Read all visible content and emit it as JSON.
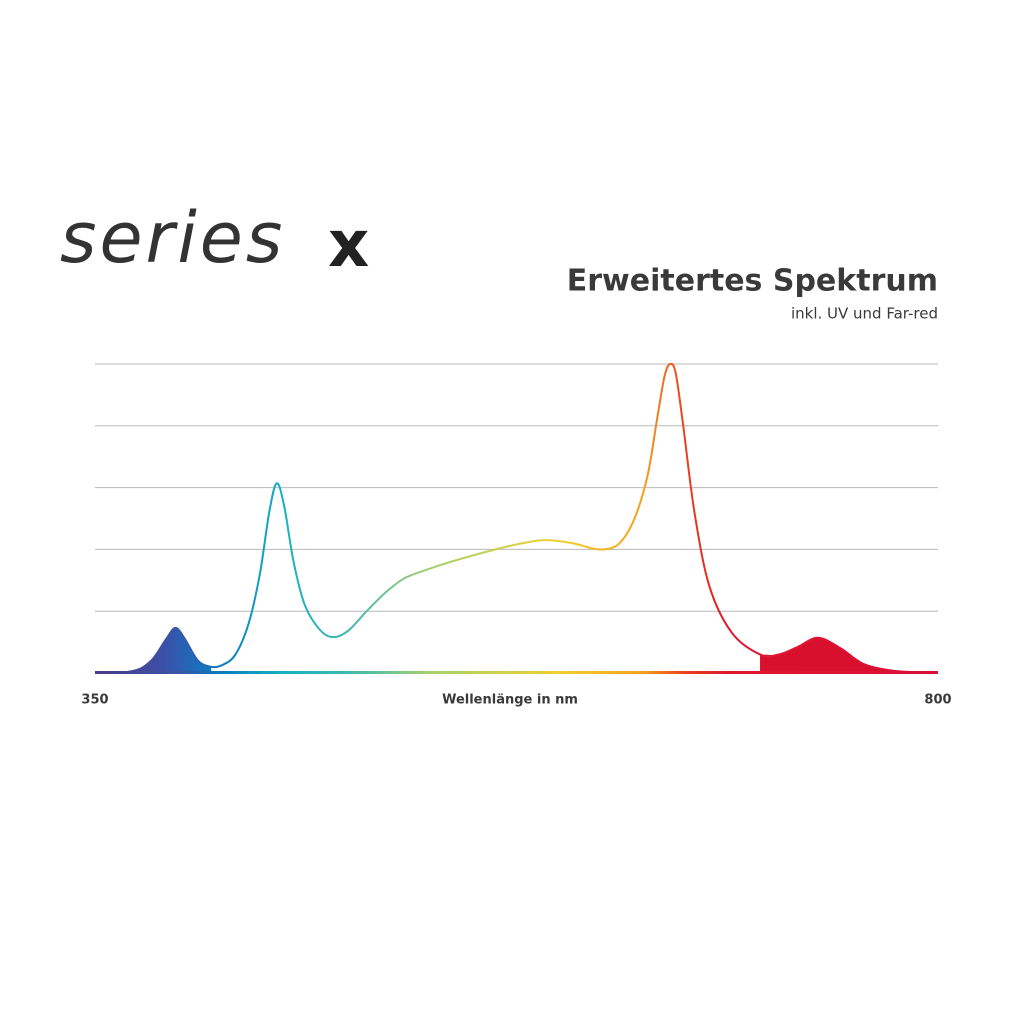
{
  "logo": {
    "text": "series",
    "mark": "x"
  },
  "chart_data": {
    "type": "line",
    "title": "Erweitertes Spektrum",
    "subtitle": "inkl. UV und Far-red",
    "x_label": "Wellenlänge in nm",
    "x": [
      350,
      370,
      380,
      388,
      393,
      398,
      405,
      412,
      418,
      425,
      432,
      438,
      443,
      447,
      451,
      456,
      462,
      470,
      477,
      485,
      495,
      505,
      515,
      525,
      540,
      560,
      575,
      590,
      605,
      615,
      622,
      630,
      638,
      645,
      650,
      654,
      657,
      660,
      664,
      670,
      678,
      690,
      705,
      715,
      725,
      736,
      748,
      760,
      775,
      790,
      800
    ],
    "values": [
      0,
      0.03,
      0.2,
      0.55,
      0.73,
      0.55,
      0.2,
      0.1,
      0.13,
      0.3,
      0.8,
      1.6,
      2.6,
      3.07,
      2.7,
      1.8,
      1.1,
      0.7,
      0.58,
      0.68,
      1.0,
      1.3,
      1.53,
      1.65,
      1.8,
      1.97,
      2.08,
      2.15,
      2.1,
      2.02,
      2.0,
      2.1,
      2.5,
      3.2,
      4.1,
      4.8,
      5.0,
      4.85,
      4.0,
      2.6,
      1.4,
      0.65,
      0.3,
      0.3,
      0.42,
      0.57,
      0.4,
      0.15,
      0.04,
      0.01,
      0
    ],
    "areas": [
      {
        "x": [
          350,
          370,
          380,
          388,
          393,
          398,
          405,
          412
        ],
        "values": [
          0,
          0.03,
          0.2,
          0.55,
          0.73,
          0.55,
          0.2,
          0.1
        ],
        "color": "url(#uvgrad)"
      },
      {
        "x": [
          705,
          715,
          725,
          736,
          748,
          760,
          775,
          790,
          800
        ],
        "values": [
          0.3,
          0.3,
          0.42,
          0.57,
          0.4,
          0.15,
          0.04,
          0.01,
          0
        ],
        "color": "#d8102e"
      }
    ],
    "xlim": [
      350,
      800
    ],
    "xticks": [
      350,
      800
    ],
    "ylim": [
      0,
      5
    ],
    "yticks": [
      0,
      1,
      2,
      3,
      4,
      5
    ],
    "grid": true
  }
}
